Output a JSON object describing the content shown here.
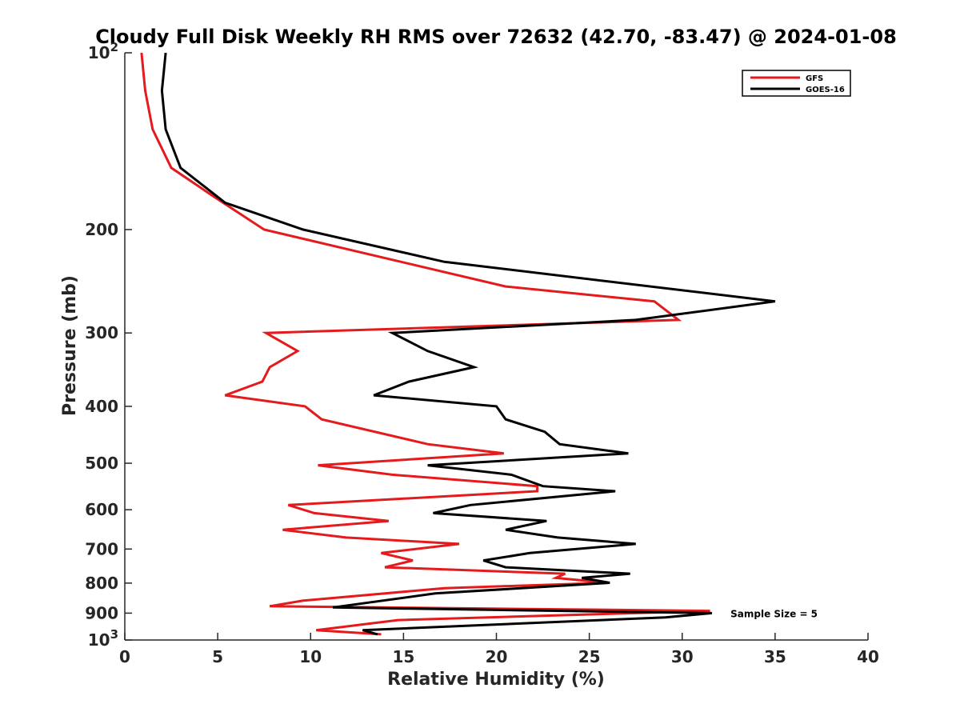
{
  "chart_data": {
    "type": "line",
    "title": "Cloudy Full Disk Weekly RH RMS over 72632 (42.70, -83.47) @ 2024-01-08",
    "xlabel": "Relative Humidity (%)",
    "ylabel": "Pressure (mb)",
    "xlim": [
      0,
      40
    ],
    "ylim": [
      100,
      1000
    ],
    "yscale": "log",
    "y_reversed": true,
    "grid": false,
    "legend_position": "top-right",
    "x_ticks": [
      0,
      5,
      10,
      15,
      20,
      25,
      30,
      35,
      40
    ],
    "y_ticks": [
      {
        "value": 100,
        "base": "10",
        "exp": "2"
      },
      {
        "value": 200,
        "label": "200"
      },
      {
        "value": 300,
        "label": "300"
      },
      {
        "value": 400,
        "label": "400"
      },
      {
        "value": 500,
        "label": "500"
      },
      {
        "value": 600,
        "label": "600"
      },
      {
        "value": 700,
        "label": "700"
      },
      {
        "value": 800,
        "label": "800"
      },
      {
        "value": 900,
        "label": "900"
      },
      {
        "value": 1000,
        "base": "10",
        "exp": "3"
      }
    ],
    "annotation": {
      "text": "Sample Size = 5",
      "x": 32.6,
      "y": 900
    },
    "series": [
      {
        "name": "GFS",
        "color": "#e41a1c",
        "points": [
          [
            0.9,
            100
          ],
          [
            1.1,
            116
          ],
          [
            1.5,
            135
          ],
          [
            2.5,
            157
          ],
          [
            4.7,
            175
          ],
          [
            7.5,
            200
          ],
          [
            20.5,
            250
          ],
          [
            28.5,
            265
          ],
          [
            29.8,
            285
          ],
          [
            7.6,
            300
          ],
          [
            9.3,
            322
          ],
          [
            7.8,
            343
          ],
          [
            7.4,
            363
          ],
          [
            5.4,
            383
          ],
          [
            9.7,
            400
          ],
          [
            10.6,
            421
          ],
          [
            16.3,
            464
          ],
          [
            20.4,
            481
          ],
          [
            10.4,
            504
          ],
          [
            14.4,
            523
          ],
          [
            22.2,
            547
          ],
          [
            22.2,
            558
          ],
          [
            8.8,
            589
          ],
          [
            10.2,
            608
          ],
          [
            14.2,
            627
          ],
          [
            8.5,
            649
          ],
          [
            11.9,
            669
          ],
          [
            18.0,
            686
          ],
          [
            13.8,
            711
          ],
          [
            15.5,
            732
          ],
          [
            14.0,
            752
          ],
          [
            23.7,
            771
          ],
          [
            23.2,
            784
          ],
          [
            26.0,
            799
          ],
          [
            17.2,
            816
          ],
          [
            9.6,
            857
          ],
          [
            7.8,
            876
          ],
          [
            31.5,
            892
          ],
          [
            14.7,
            925
          ],
          [
            10.3,
            962
          ],
          [
            13.8,
            978
          ]
        ]
      },
      {
        "name": "GOES-16",
        "color": "#000000",
        "points": [
          [
            2.2,
            100
          ],
          [
            2.0,
            116
          ],
          [
            2.2,
            135
          ],
          [
            3.0,
            157
          ],
          [
            5.4,
            180
          ],
          [
            9.6,
            200
          ],
          [
            17.2,
            227
          ],
          [
            35.0,
            265
          ],
          [
            27.5,
            285
          ],
          [
            14.4,
            300
          ],
          [
            16.3,
            322
          ],
          [
            18.8,
            343
          ],
          [
            15.3,
            363
          ],
          [
            13.4,
            383
          ],
          [
            20.0,
            400
          ],
          [
            20.5,
            421
          ],
          [
            22.6,
            442
          ],
          [
            23.4,
            464
          ],
          [
            27.1,
            481
          ],
          [
            16.3,
            504
          ],
          [
            20.8,
            523
          ],
          [
            22.5,
            547
          ],
          [
            26.4,
            558
          ],
          [
            18.6,
            589
          ],
          [
            16.6,
            608
          ],
          [
            22.7,
            627
          ],
          [
            20.5,
            649
          ],
          [
            23.3,
            669
          ],
          [
            27.5,
            686
          ],
          [
            21.8,
            711
          ],
          [
            19.3,
            732
          ],
          [
            20.5,
            752
          ],
          [
            27.2,
            771
          ],
          [
            24.6,
            784
          ],
          [
            26.1,
            799
          ],
          [
            16.7,
            833
          ],
          [
            11.2,
            880
          ],
          [
            31.6,
            900
          ],
          [
            29.1,
            915
          ],
          [
            12.8,
            962
          ],
          [
            13.6,
            978
          ]
        ]
      }
    ]
  }
}
